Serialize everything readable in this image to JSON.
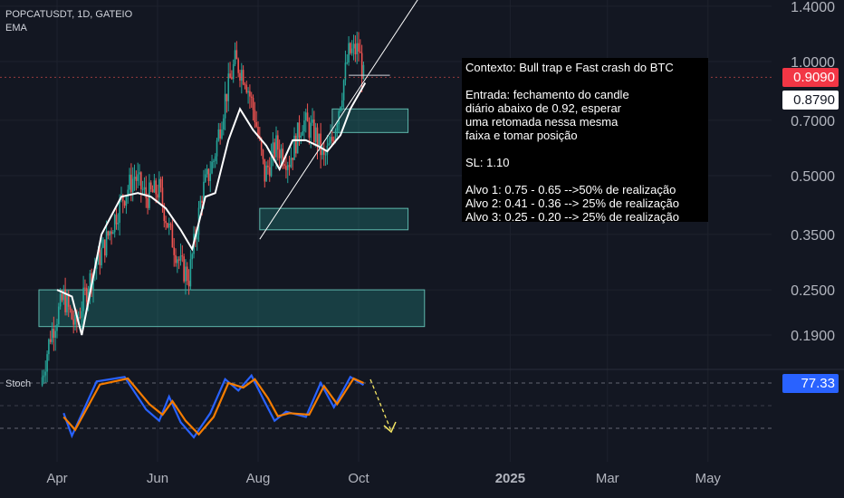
{
  "header": {
    "symbol_line": "POPCATUSDT, 1D, GATEIO",
    "indicator_line": "EMA"
  },
  "note": {
    "lines": [
      "Contexto: Bull trap e Fast crash do BTC",
      "",
      "Entrada: fechamento do candle",
      "diário abaixo de 0.92, esperar",
      "uma retomada nessa mesma",
      "faixa e tomar posição",
      "",
      "SL: 1.10",
      "",
      "Alvo 1: 0.75 - 0.65 -->50% de realização",
      "Alvo 2: 0.41 - 0.36 --> 25% de realização",
      "Alvo 3: 0.25 - 0.20 --> 25% de realização"
    ]
  },
  "price_tags": {
    "last": {
      "label": "0.9090",
      "bg": "#f23645",
      "fg": "#ffffff"
    },
    "ema": {
      "label": "0.8790",
      "bg": "#ffffff",
      "fg": "#131722"
    },
    "stoch": {
      "label": "77.33",
      "bg": "#2962ff",
      "fg": "#ffffff"
    }
  },
  "stoch_label": "Stoch",
  "colors": {
    "background": "#131722",
    "up": "#26a69a",
    "down": "#ef5350",
    "ema": "#ffffff",
    "zone": "#26a69a",
    "stoch_k": "#2962ff",
    "stoch_d": "#f57c00",
    "arrow": "#f5e663"
  },
  "chart_data": {
    "type": "candlestick",
    "symbol": "POPCATUSDT",
    "interval": "1D",
    "exchange": "GATEIO",
    "price_axis": {
      "scale": "log",
      "ticks": [
        1.4,
        1.0,
        0.7,
        0.5,
        0.35,
        0.25,
        0.19
      ],
      "tick_labels": [
        "1.4000",
        "1.0000",
        "0.7000",
        "0.5000",
        "0.3500",
        "0.2500",
        "0.1900"
      ]
    },
    "time_axis": {
      "labels": [
        "Apr",
        "Jun",
        "Aug",
        "Oct",
        "2025",
        "Mar",
        "May"
      ],
      "label_dates": [
        "2024-04-01",
        "2024-06-01",
        "2024-08-01",
        "2024-10-01",
        "2025-01-01",
        "2025-03-01",
        "2025-05-01"
      ]
    },
    "close_path": [
      [
        "2024-03-22",
        0.14
      ],
      [
        "2024-03-28",
        0.19
      ],
      [
        "2024-04-05",
        0.24
      ],
      [
        "2024-04-12",
        0.2
      ],
      [
        "2024-04-20",
        0.26
      ],
      [
        "2024-04-30",
        0.33
      ],
      [
        "2024-05-10",
        0.43
      ],
      [
        "2024-05-18",
        0.5
      ],
      [
        "2024-05-25",
        0.44
      ],
      [
        "2024-06-02",
        0.46
      ],
      [
        "2024-06-08",
        0.36
      ],
      [
        "2024-06-15",
        0.29
      ],
      [
        "2024-06-20",
        0.27
      ],
      [
        "2024-06-28",
        0.45
      ],
      [
        "2024-07-05",
        0.55
      ],
      [
        "2024-07-12",
        0.8
      ],
      [
        "2024-07-18",
        1.0
      ],
      [
        "2024-07-24",
        0.92
      ],
      [
        "2024-07-30",
        0.72
      ],
      [
        "2024-08-05",
        0.5
      ],
      [
        "2024-08-12",
        0.6
      ],
      [
        "2024-08-20",
        0.55
      ],
      [
        "2024-08-28",
        0.7
      ],
      [
        "2024-09-05",
        0.64
      ],
      [
        "2024-09-10",
        0.55
      ],
      [
        "2024-09-15",
        0.62
      ],
      [
        "2024-09-20",
        0.8
      ],
      [
        "2024-09-25",
        1.05
      ],
      [
        "2024-10-01",
        1.08
      ],
      [
        "2024-10-04",
        0.909
      ]
    ],
    "ema_points": [
      [
        "2024-04-01",
        0.25
      ],
      [
        "2024-04-10",
        0.24
      ],
      [
        "2024-04-16",
        0.19
      ],
      [
        "2024-04-28",
        0.35
      ],
      [
        "2024-05-10",
        0.44
      ],
      [
        "2024-05-20",
        0.45
      ],
      [
        "2024-05-28",
        0.44
      ],
      [
        "2024-06-06",
        0.41
      ],
      [
        "2024-06-15",
        0.36
      ],
      [
        "2024-06-22",
        0.32
      ],
      [
        "2024-06-30",
        0.44
      ],
      [
        "2024-07-06",
        0.45
      ],
      [
        "2024-07-14",
        0.62
      ],
      [
        "2024-07-21",
        0.75
      ],
      [
        "2024-07-29",
        0.66
      ],
      [
        "2024-08-06",
        0.6
      ],
      [
        "2024-08-14",
        0.52
      ],
      [
        "2024-08-22",
        0.62
      ],
      [
        "2024-08-30",
        0.62
      ],
      [
        "2024-09-06",
        0.6
      ],
      [
        "2024-09-12",
        0.58
      ],
      [
        "2024-09-20",
        0.64
      ],
      [
        "2024-09-26",
        0.75
      ],
      [
        "2024-10-05",
        0.879
      ]
    ],
    "zones": [
      {
        "from": "2024-09-15",
        "to": "2024-10-31",
        "low": 0.65,
        "high": 0.75
      },
      {
        "from": "2024-08-02",
        "to": "2024-10-31",
        "low": 0.36,
        "high": 0.41
      },
      {
        "from": "2024-03-21",
        "to": "2024-11-10",
        "low": 0.2,
        "high": 0.25
      }
    ],
    "trendline": {
      "from": [
        "2024-08-02",
        0.34
      ],
      "to": [
        "2024-11-10",
        1.55
      ]
    },
    "entry_level": {
      "from": "2024-09-25",
      "to": "2024-10-20",
      "value": 0.92
    },
    "last_price": 0.909,
    "ema_last": 0.879,
    "stoch": {
      "value": 77.33,
      "levels": [
        80,
        50,
        20
      ],
      "k": [
        [
          "2024-04-05",
          40
        ],
        [
          "2024-04-10",
          10
        ],
        [
          "2024-04-25",
          82
        ],
        [
          "2024-05-12",
          88
        ],
        [
          "2024-05-25",
          45
        ],
        [
          "2024-06-02",
          30
        ],
        [
          "2024-06-08",
          62
        ],
        [
          "2024-06-15",
          28
        ],
        [
          "2024-06-23",
          8
        ],
        [
          "2024-07-03",
          40
        ],
        [
          "2024-07-12",
          85
        ],
        [
          "2024-07-20",
          70
        ],
        [
          "2024-07-28",
          90
        ],
        [
          "2024-08-05",
          55
        ],
        [
          "2024-08-11",
          30
        ],
        [
          "2024-08-18",
          42
        ],
        [
          "2024-08-30",
          35
        ],
        [
          "2024-09-08",
          80
        ],
        [
          "2024-09-16",
          48
        ],
        [
          "2024-09-26",
          88
        ],
        [
          "2024-10-04",
          77.33
        ]
      ],
      "d": [
        [
          "2024-04-05",
          35
        ],
        [
          "2024-04-12",
          18
        ],
        [
          "2024-04-27",
          78
        ],
        [
          "2024-05-14",
          86
        ],
        [
          "2024-05-27",
          52
        ],
        [
          "2024-06-04",
          38
        ],
        [
          "2024-06-10",
          56
        ],
        [
          "2024-06-18",
          30
        ],
        [
          "2024-06-26",
          12
        ],
        [
          "2024-07-05",
          35
        ],
        [
          "2024-07-14",
          80
        ],
        [
          "2024-07-23",
          74
        ],
        [
          "2024-07-30",
          85
        ],
        [
          "2024-08-07",
          60
        ],
        [
          "2024-08-13",
          36
        ],
        [
          "2024-08-20",
          40
        ],
        [
          "2024-09-01",
          38
        ],
        [
          "2024-09-10",
          76
        ],
        [
          "2024-09-18",
          52
        ],
        [
          "2024-09-28",
          86
        ],
        [
          "2024-10-04",
          80
        ]
      ]
    }
  }
}
